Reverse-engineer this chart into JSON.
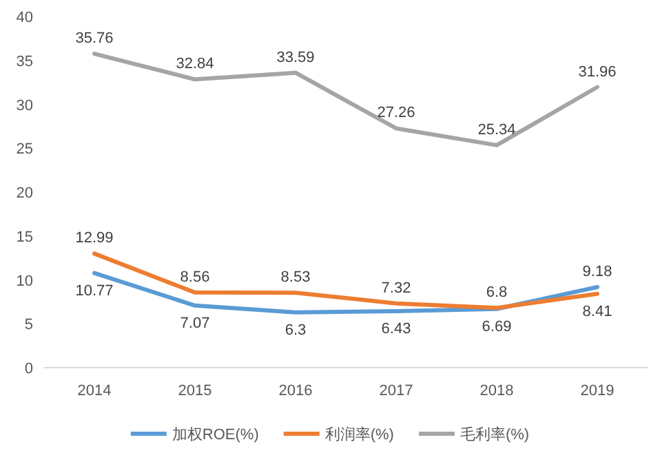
{
  "chart_data": {
    "type": "line",
    "categories": [
      "2014",
      "2015",
      "2016",
      "2017",
      "2018",
      "2019"
    ],
    "series": [
      {
        "name": "加权ROE(%)",
        "color": "#5b9bd5",
        "values": [
          10.77,
          7.07,
          6.3,
          6.43,
          6.69,
          9.18
        ]
      },
      {
        "name": "利润率(%)",
        "color": "#ed7d31",
        "values": [
          12.99,
          8.56,
          8.53,
          7.32,
          6.8,
          8.41
        ]
      },
      {
        "name": "毛利率(%)",
        "color": "#a5a5a5",
        "values": [
          35.76,
          32.84,
          33.59,
          27.26,
          25.34,
          31.96
        ]
      }
    ],
    "ylim": [
      0,
      40
    ],
    "yticks": [
      0,
      5,
      10,
      15,
      20,
      25,
      30,
      35,
      40
    ],
    "data_labels": true,
    "legend": "bottom",
    "marker": "none",
    "line_style": "solid"
  }
}
